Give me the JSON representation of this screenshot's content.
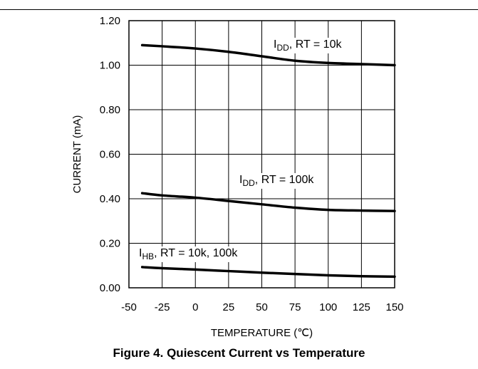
{
  "caption": "Figure 4. Quiescent Current vs Temperature",
  "chart_data": {
    "type": "line",
    "title": "",
    "xlabel": "TEMPERATURE (℃)",
    "ylabel": "CURRENT (mA)",
    "xlim": [
      -50,
      150
    ],
    "ylim": [
      0.0,
      1.2
    ],
    "x_ticks": [
      "-50",
      "-25",
      "0",
      "25",
      "50",
      "75",
      "100",
      "125",
      "150"
    ],
    "y_ticks": [
      "0.00",
      "0.20",
      "0.40",
      "0.60",
      "0.80",
      "1.00",
      "1.20"
    ],
    "grid": true,
    "series": [
      {
        "label_main": "I",
        "label_sub": "DD",
        "label_rest": ", RT = 10k",
        "x": [
          -40,
          -25,
          0,
          25,
          50,
          75,
          100,
          125,
          150
        ],
        "values": [
          1.09,
          1.085,
          1.075,
          1.06,
          1.04,
          1.02,
          1.01,
          1.005,
          1.0
        ]
      },
      {
        "label_main": "I",
        "label_sub": "DD",
        "label_rest": ", RT = 100k",
        "x": [
          -40,
          -25,
          0,
          25,
          50,
          75,
          100,
          125,
          150
        ],
        "values": [
          0.425,
          0.415,
          0.405,
          0.39,
          0.375,
          0.36,
          0.35,
          0.347,
          0.345
        ]
      },
      {
        "label_main": "I",
        "label_sub": "HB",
        "label_rest": ", RT = 10k, 100k",
        "x": [
          -40,
          -25,
          0,
          25,
          50,
          75,
          100,
          125,
          150
        ],
        "values": [
          0.093,
          0.088,
          0.082,
          0.075,
          0.068,
          0.062,
          0.056,
          0.052,
          0.05
        ]
      }
    ]
  }
}
